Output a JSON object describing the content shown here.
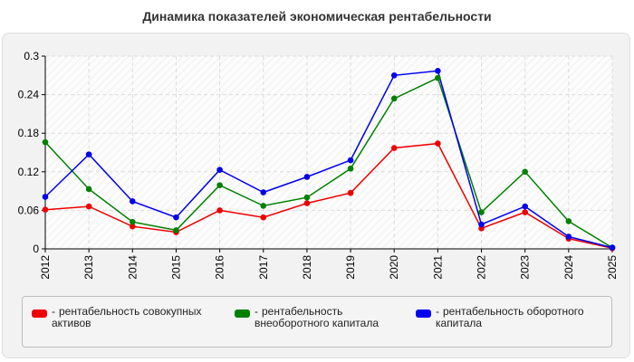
{
  "title": "Динамика показателей экономическая рентабельности",
  "chart_data": {
    "type": "line",
    "title": "Динамика показателей экономическая рентабельности",
    "categories": [
      "2012",
      "2013",
      "2014",
      "2015",
      "2016",
      "2017",
      "2018",
      "2019",
      "2020",
      "2021",
      "2022",
      "2023",
      "2024",
      "2025"
    ],
    "y_ticks": [
      "0",
      "0.06",
      "0.12",
      "0.18",
      "0.24",
      "0.3"
    ],
    "ylim": [
      0,
      0.3
    ],
    "grid": true,
    "legend_position": "bottom",
    "series": [
      {
        "name": "рентабельность совокупных активов",
        "color": "#ee0000",
        "values": [
          0.061,
          0.066,
          0.035,
          0.026,
          0.06,
          0.049,
          0.071,
          0.087,
          0.157,
          0.164,
          0.032,
          0.057,
          0.016,
          0.001
        ]
      },
      {
        "name": "рентабельность внеоборотного капитала",
        "color": "#008000",
        "values": [
          0.166,
          0.093,
          0.042,
          0.029,
          0.099,
          0.067,
          0.08,
          0.125,
          0.234,
          0.266,
          0.057,
          0.12,
          0.043,
          0.002
        ]
      },
      {
        "name": "рентабельность оборотного капитала",
        "color": "#0000ee",
        "values": [
          0.081,
          0.147,
          0.074,
          0.049,
          0.123,
          0.088,
          0.112,
          0.138,
          0.27,
          0.277,
          0.038,
          0.066,
          0.019,
          0.002
        ]
      }
    ]
  },
  "legend": [
    {
      "dash": "-",
      "label": "рентабельность совокупных активов",
      "color": "#ee0000"
    },
    {
      "dash": "-",
      "label": "рентабельность внеоборотного капитала",
      "color": "#008000"
    },
    {
      "dash": "-",
      "label": "рентабельность оборотного капитала",
      "color": "#0000ee"
    }
  ]
}
